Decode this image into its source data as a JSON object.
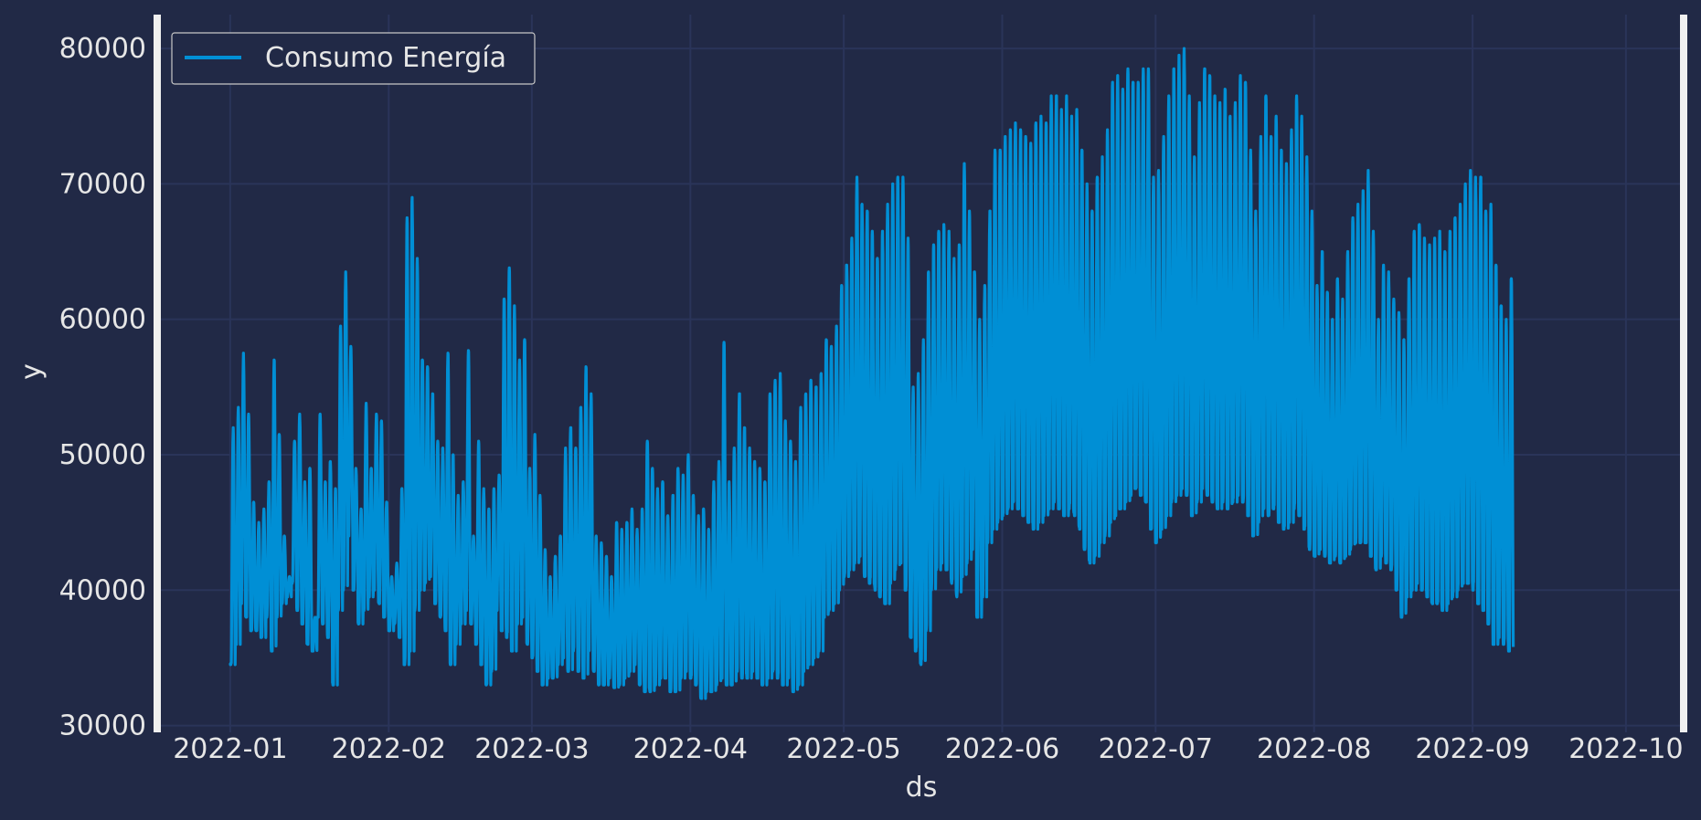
{
  "colors": {
    "background": "#212946",
    "grid": "#2A3459",
    "line": "#008FD5",
    "text": "#E6E6E6",
    "frame": "#F0F0F0"
  },
  "chart_data": {
    "type": "line",
    "xlabel": "ds",
    "ylabel": "y",
    "legend": {
      "position": "top-left",
      "entries": [
        "Consumo Energía"
      ]
    },
    "grid": true,
    "xlim": [
      "2021-12-17",
      "2022-10-13"
    ],
    "ylim": [
      29500,
      82500
    ],
    "x_ticks": [
      "2022-01-01",
      "2022-02-01",
      "2022-03-01",
      "2022-04-01",
      "2022-05-01",
      "2022-06-01",
      "2022-07-01",
      "2022-08-01",
      "2022-09-01",
      "2022-10-01"
    ],
    "x_tick_labels": [
      "2022-01",
      "2022-02",
      "2022-03",
      "2022-04",
      "2022-05",
      "2022-06",
      "2022-07",
      "2022-08",
      "2022-09",
      "2022-10"
    ],
    "y_ticks": [
      30000,
      40000,
      50000,
      60000,
      70000,
      80000
    ],
    "y_tick_labels": [
      "30000",
      "40000",
      "50000",
      "60000",
      "70000",
      "80000"
    ],
    "series": [
      {
        "name": "Consumo Energía",
        "sampling": "hourly, 2022-01-01 00:00 to 2022-09-30 23:00",
        "daily_peak_approx": [
          52000,
          53500,
          57500,
          53000,
          46500,
          45000,
          46000,
          48000,
          57000,
          51500,
          44000,
          41000,
          51000,
          53000,
          48000,
          49000,
          38000,
          53000,
          48000,
          49500,
          47500,
          59500,
          63500,
          58000,
          49000,
          46000,
          53800,
          49000,
          53000,
          52500,
          46500,
          41000,
          42000,
          47500,
          67500,
          69000,
          64500,
          57000,
          56500,
          54500,
          51000,
          50500,
          57500,
          50000,
          47000,
          48000,
          57700,
          44000,
          51000,
          47500,
          46000,
          47500,
          48500,
          61500,
          63800,
          61000,
          57000,
          58500,
          49000,
          51500,
          47000,
          43000,
          41000,
          42500,
          44000,
          50500,
          52000,
          50500,
          53500,
          56500,
          54500,
          44000,
          43500,
          42500,
          41000,
          45000,
          44500,
          45000,
          46000,
          44500,
          46000,
          51000,
          49000,
          47500,
          48000,
          45500,
          47000,
          49000,
          48500,
          50000,
          47000,
          45500,
          46000,
          44500,
          48000,
          49500,
          58300,
          48000,
          50500,
          54500,
          52000,
          50500,
          49500,
          49000,
          48000,
          54500,
          55500,
          56000,
          52500,
          51000,
          49500,
          53500,
          54500,
          55500,
          55000,
          56000,
          58500,
          58000,
          59500,
          62500,
          64000,
          66000,
          70500,
          68500,
          68000,
          66500,
          64500,
          66500,
          68500,
          70000,
          70500,
          70500,
          66000,
          55000,
          56000,
          58500,
          63500,
          65500,
          66500,
          67000,
          66500,
          64500,
          65500,
          71500,
          68000,
          63500,
          60000,
          62500,
          68000,
          72500,
          72500,
          73500,
          74000,
          74500,
          74000,
          73500,
          73000,
          74500,
          75000,
          74500,
          76500,
          76500,
          75500,
          76500,
          75000,
          75500,
          72500,
          70000,
          68000,
          70500,
          72000,
          74000,
          77500,
          78000,
          77000,
          78500,
          77500,
          77500,
          78500,
          78500,
          70500,
          71000,
          73500,
          76500,
          78500,
          79500,
          80000,
          76500,
          72000,
          76000,
          78500,
          78000,
          76500,
          76000,
          77000,
          75000,
          76000,
          78000,
          77500,
          72500,
          68000,
          73500,
          76500,
          73500,
          75000,
          72500,
          71500,
          74000,
          76500,
          75000,
          72000,
          68000,
          62500,
          65000,
          62000,
          60000,
          63000,
          61500,
          65000,
          67500,
          68500,
          69500,
          71000,
          66500,
          60000,
          64000,
          63500,
          61500,
          60500,
          58500,
          63000,
          66500,
          67000,
          66000,
          65500,
          66000,
          66500,
          65000,
          66500,
          67500,
          68500,
          70000,
          71000,
          70500,
          70500,
          68000,
          68500,
          64000,
          61000,
          60000,
          63000,
          57500,
          60000,
          58000,
          56000
        ],
        "daily_trough_approx": [
          34500,
          36000,
          39000,
          38000,
          37000,
          37000,
          36500,
          38000,
          35500,
          38000,
          39000,
          39500,
          40500,
          38500,
          37500,
          36000,
          35500,
          38000,
          37500,
          36500,
          33000,
          38500,
          40000,
          44000,
          40000,
          37500,
          38500,
          39500,
          40000,
          39000,
          38000,
          37000,
          37500,
          36500,
          34500,
          35500,
          38500,
          40000,
          40500,
          41000,
          39000,
          38000,
          37000,
          34500,
          36000,
          37500,
          38500,
          37500,
          36000,
          34500,
          33000,
          34000,
          38500,
          37000,
          36500,
          35500,
          37500,
          38000,
          36000,
          35000,
          34000,
          33000,
          33500,
          33500,
          34500,
          35000,
          34000,
          35500,
          34000,
          33500,
          35500,
          34000,
          33000,
          33000,
          33500,
          32800,
          33000,
          33500,
          34000,
          34500,
          33000,
          32500,
          32500,
          33000,
          33500,
          33500,
          32500,
          32500,
          33500,
          34000,
          33500,
          33000,
          32000,
          32500,
          32500,
          33000,
          33500,
          33000,
          33000,
          34000,
          33500,
          33500,
          34000,
          33500,
          33000,
          33500,
          34000,
          33500,
          33000,
          33500,
          32500,
          33000,
          34000,
          34500,
          35000,
          35500,
          38000,
          38500,
          39000,
          40000,
          41000,
          41500,
          42000,
          42500,
          41000,
          40500,
          40000,
          39500,
          39000,
          40500,
          41500,
          42000,
          40000,
          36500,
          35500,
          34500,
          37000,
          40000,
          41500,
          42000,
          41500,
          40500,
          39500,
          41000,
          42000,
          43000,
          38000,
          39500,
          43500,
          44500,
          45000,
          45500,
          46000,
          46500,
          46000,
          45500,
          45000,
          44500,
          45000,
          45500,
          46000,
          46500,
          46000,
          45500,
          46000,
          45500,
          44500,
          43000,
          42000,
          42500,
          43500,
          44000,
          45000,
          45500,
          46000,
          46500,
          47000,
          47500,
          47000,
          46500,
          44500,
          43500,
          44500,
          45500,
          46500,
          47000,
          47500,
          47000,
          45500,
          46500,
          47500,
          47000,
          46500,
          46000,
          46500,
          46000,
          46500,
          47000,
          46500,
          45500,
          44000,
          45000,
          46000,
          45500,
          46000,
          45000,
          44500,
          45000,
          46000,
          45500,
          44500,
          43000,
          42500,
          43000,
          42500,
          42000,
          42500,
          42000,
          42500,
          43000,
          43500,
          43500,
          43500,
          42500,
          41500,
          42500,
          42000,
          41500,
          40000,
          38000,
          39500,
          40000,
          40500,
          40000,
          39500,
          39000,
          39000,
          38500,
          39000,
          39500,
          40000,
          40500,
          40500,
          40000,
          39000,
          38500,
          37500,
          36000,
          36500,
          36000,
          35500
        ]
      }
    ]
  }
}
